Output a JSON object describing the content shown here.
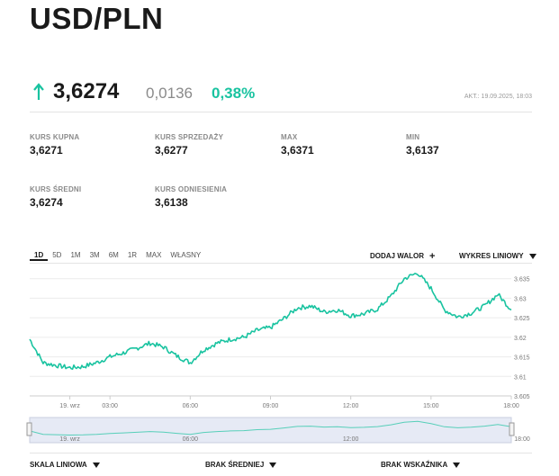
{
  "header": {
    "title": "USD/PLN"
  },
  "quote": {
    "price": "3,6274",
    "change_abs": "0,0136",
    "change_pct": "0,38%",
    "updated": "AKT.: 19.09.2025, 18:03",
    "trend_icon": "arrow-up-icon",
    "accent_color": "#19c3a0"
  },
  "stats": [
    {
      "label": "KURS KUPNA",
      "value": "3,6271"
    },
    {
      "label": "KURS SPRZEDAŻY",
      "value": "3,6277"
    },
    {
      "label": "MAX",
      "value": "3,6371"
    },
    {
      "label": "MIN",
      "value": "3,6137"
    },
    {
      "label": "KURS ŚREDNI",
      "value": "3,6274"
    },
    {
      "label": "KURS ODNIESIENIA",
      "value": "3,6138"
    }
  ],
  "range_tabs": [
    "1D",
    "5D",
    "1M",
    "3M",
    "6M",
    "1R",
    "MAX",
    "WŁASNY"
  ],
  "active_range": "1D",
  "chart_controls": {
    "add_asset": "DODAJ WALOR",
    "chart_type": "WYKRES LINIOWY"
  },
  "bottom_controls": {
    "scale": "SKALA LINIOWA",
    "average": "BRAK ŚREDNIEJ",
    "indicator": "BRAK WSKAŹNIKA"
  },
  "chart_data": {
    "type": "line",
    "title": "",
    "xlabel": "",
    "ylabel": "",
    "line_color": "#19c3a0",
    "x_tick_labels": [
      "19. wrz",
      "03:00",
      "06:00",
      "09:00",
      "12:00",
      "15:00",
      "18:00"
    ],
    "y_tick_labels": [
      "3.605",
      "3.61",
      "3.615",
      "3.62",
      "3.625",
      "3.63",
      "3.635"
    ],
    "ylim": [
      3.605,
      3.637
    ],
    "x_hours": [
      0,
      0.5,
      1,
      1.5,
      2,
      2.5,
      3,
      3.5,
      4,
      4.5,
      5,
      5.5,
      6,
      6.5,
      7,
      7.5,
      8,
      8.5,
      9,
      9.5,
      10,
      10.5,
      11,
      11.5,
      12,
      12.5,
      13,
      13.5,
      14,
      14.5,
      15,
      15.5,
      16,
      16.5,
      17,
      17.5,
      18
    ],
    "x_start_label": "19. wrz 00:00",
    "values": [
      3.6195,
      3.6135,
      3.6128,
      3.6122,
      3.6125,
      3.6135,
      3.615,
      3.616,
      3.6172,
      3.6185,
      3.6175,
      3.6152,
      3.6135,
      3.6168,
      3.6185,
      3.6195,
      3.62,
      3.6218,
      3.6225,
      3.6248,
      3.6275,
      3.628,
      3.6265,
      3.627,
      3.6255,
      3.626,
      3.6272,
      3.6305,
      3.635,
      3.6365,
      3.6325,
      3.627,
      3.6252,
      3.6262,
      3.628,
      3.631,
      3.627
    ],
    "navigator_x_labels": [
      "19. wrz",
      "06:00",
      "12:00",
      "18:00"
    ]
  }
}
